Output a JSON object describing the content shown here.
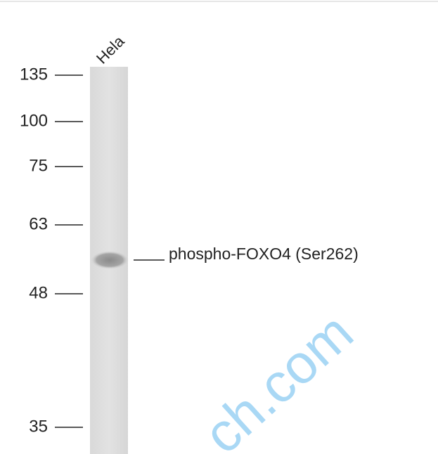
{
  "lane_label": "Hela",
  "markers": [
    "135",
    "100",
    "75",
    "63",
    "48",
    "35"
  ],
  "band_label": "phospho-FOXO4 (Ser262)",
  "watermark": "ch.com"
}
